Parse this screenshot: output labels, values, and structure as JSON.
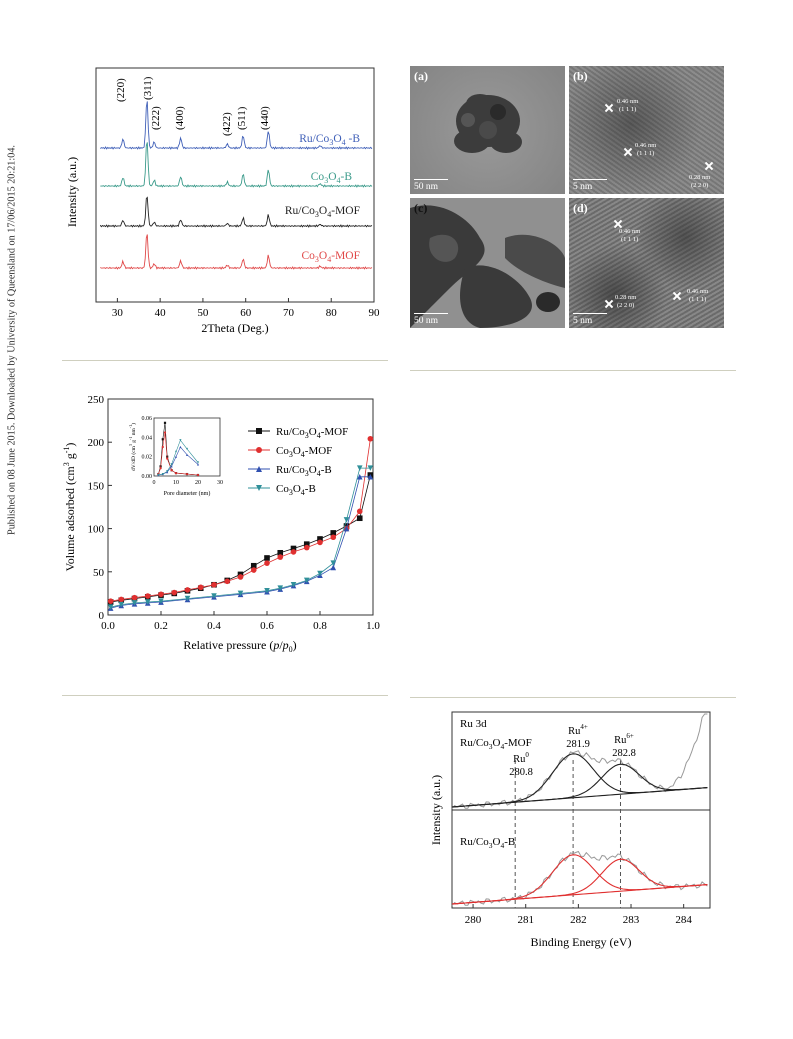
{
  "sidebar": {
    "text": "Published on 08 June 2015. Downloaded by University of Queensland on 17/06/2015 20:21:04."
  },
  "xrd": {
    "ylabel": "Intensity (a.u.)",
    "xlabel": "2Theta (Deg.)",
    "xticks": [
      "30",
      "40",
      "50",
      "60",
      "70",
      "80",
      "90"
    ],
    "peaks": [
      "(220)",
      "(311)",
      "(222)",
      "(400)",
      "(422)",
      "(511)",
      "(440)"
    ],
    "series": [
      {
        "name": "Ru/Co3O4-B",
        "color": "#4060b8"
      },
      {
        "name": "Co3O4-B",
        "color": "#3a9a8a"
      },
      {
        "name": "Ru/Co3O4-MOF",
        "color": "#222222"
      },
      {
        "name": "Co3O4-MOF",
        "color": "#e04848"
      }
    ]
  },
  "tem": {
    "panels": [
      {
        "label": "(a)",
        "scale": "50  nm",
        "ann": []
      },
      {
        "label": "(b)",
        "scale": "5  nm",
        "ann": [
          "0.46 nm",
          "(1 1 1)",
          "0.46 nm",
          "(1 1 1)",
          "0.28 nm",
          "(2 2 0)"
        ]
      },
      {
        "label": "(c)",
        "scale": "50  nm",
        "ann": []
      },
      {
        "label": "(d)",
        "scale": "5  nm",
        "ann": [
          "0.46 nm",
          "(1 1 1)",
          "0.28 nm",
          "(2 2 0)",
          "0.46 nm",
          "(1 1 1)"
        ]
      }
    ]
  },
  "bet": {
    "ylabel": "Volume adsorbed (cm³ g⁻¹)",
    "xlabel": "Relative pressure (p/p0)",
    "yticks": [
      "0",
      "50",
      "100",
      "150",
      "200",
      "250"
    ],
    "xticks": [
      "0.0",
      "0.2",
      "0.4",
      "0.6",
      "0.8",
      "1.0"
    ],
    "inset": {
      "ylabel": "dV/dD (cm³ g⁻¹ nm⁻¹)",
      "xlabel": "Pore diameter (nm)",
      "yticks": [
        "0.00",
        "0.02",
        "0.04",
        "0.06"
      ],
      "xticks": [
        "0",
        "10",
        "20",
        "30"
      ]
    },
    "legend": [
      "Ru/Co3O4-MOF",
      "Co3O4-MOF",
      "Ru/Co3O4-B",
      "Co3O4-B"
    ],
    "colors": [
      "#111111",
      "#e03030",
      "#3050b0",
      "#30909a"
    ]
  },
  "chart_data": [
    {
      "type": "line",
      "title": "",
      "xlabel": "Relative pressure (p/p0)",
      "ylabel": "Volume adsorbed (cm3 g-1)",
      "xlim": [
        0,
        1.0
      ],
      "ylim": [
        0,
        250
      ],
      "series": [
        {
          "name": "Ru/Co3O4-MOF",
          "x": [
            0.01,
            0.05,
            0.1,
            0.15,
            0.2,
            0.25,
            0.3,
            0.35,
            0.4,
            0.45,
            0.5,
            0.55,
            0.6,
            0.65,
            0.7,
            0.75,
            0.8,
            0.85,
            0.9,
            0.95,
            0.99
          ],
          "y": [
            15,
            17,
            19,
            21,
            23,
            25,
            28,
            31,
            35,
            40,
            47,
            57,
            66,
            72,
            77,
            82,
            88,
            95,
            103,
            112,
            162
          ]
        },
        {
          "name": "Co3O4-MOF",
          "x": [
            0.01,
            0.05,
            0.1,
            0.15,
            0.2,
            0.25,
            0.3,
            0.35,
            0.4,
            0.45,
            0.5,
            0.55,
            0.6,
            0.65,
            0.7,
            0.75,
            0.8,
            0.85,
            0.9,
            0.95,
            0.99
          ],
          "y": [
            16,
            18,
            20,
            22,
            24,
            26,
            29,
            32,
            35,
            39,
            44,
            52,
            60,
            67,
            73,
            78,
            84,
            90,
            100,
            120,
            204
          ]
        },
        {
          "name": "Ru/Co3O4-B",
          "x": [
            0.01,
            0.05,
            0.1,
            0.15,
            0.2,
            0.3,
            0.4,
            0.5,
            0.6,
            0.65,
            0.7,
            0.75,
            0.8,
            0.85,
            0.9,
            0.95,
            0.99
          ],
          "y": [
            8,
            11,
            13,
            14,
            15,
            18,
            21,
            24,
            27,
            30,
            34,
            39,
            46,
            55,
            100,
            160,
            160
          ]
        },
        {
          "name": "Co3O4-B",
          "x": [
            0.01,
            0.05,
            0.1,
            0.15,
            0.2,
            0.3,
            0.4,
            0.5,
            0.6,
            0.65,
            0.7,
            0.75,
            0.8,
            0.85,
            0.9,
            0.95,
            0.99
          ],
          "y": [
            9,
            12,
            14,
            15,
            16,
            19,
            22,
            25,
            28,
            31,
            35,
            40,
            48,
            60,
            110,
            170,
            170
          ]
        }
      ]
    },
    {
      "type": "line",
      "title": "",
      "xlabel": "Pore diameter (nm)",
      "ylabel": "dV/dD (cm3 g-1 nm-1)",
      "xlim": [
        0,
        30
      ],
      "ylim": [
        0,
        0.06
      ],
      "series": [
        {
          "name": "Ru/Co3O4-MOF",
          "x": [
            2,
            3,
            4,
            5,
            6,
            8,
            10,
            15,
            20
          ],
          "y": [
            0.002,
            0.01,
            0.038,
            0.055,
            0.02,
            0.006,
            0.003,
            0.002,
            0.001
          ]
        },
        {
          "name": "Co3O4-MOF",
          "x": [
            2,
            3,
            4,
            5,
            6,
            8,
            10,
            15,
            20
          ],
          "y": [
            0.002,
            0.008,
            0.03,
            0.045,
            0.018,
            0.006,
            0.003,
            0.002,
            0.001
          ]
        },
        {
          "name": "Ru/Co3O4-B",
          "x": [
            2,
            4,
            6,
            8,
            10,
            12,
            15,
            20
          ],
          "y": [
            0.001,
            0.002,
            0.004,
            0.01,
            0.02,
            0.03,
            0.022,
            0.012
          ]
        },
        {
          "name": "Co3O4-B",
          "x": [
            2,
            4,
            6,
            8,
            10,
            12,
            15,
            20
          ],
          "y": [
            0.001,
            0.002,
            0.005,
            0.012,
            0.025,
            0.037,
            0.028,
            0.014
          ]
        }
      ]
    },
    {
      "type": "line",
      "title": "",
      "xlabel": "Binding Energy (eV)",
      "ylabel": "Intensity (a.u.)",
      "xlim": [
        279.6,
        284.5
      ],
      "series": [
        {
          "name": "Ru 0",
          "x": [
            280.8
          ],
          "y": [
            0
          ]
        },
        {
          "name": "Ru 4+",
          "x": [
            281.9
          ],
          "y": [
            0
          ]
        },
        {
          "name": "Ru 6+",
          "x": [
            282.8
          ],
          "y": [
            0
          ]
        }
      ]
    }
  ],
  "xps": {
    "title": "Ru 3d",
    "sample_top": "Ru/Co3O4-MOF",
    "sample_bottom": "Ru/Co3O4-B",
    "ylabel": "Intensity (a.u.)",
    "xlabel": "Binding Energy (eV)",
    "xticks": [
      "280",
      "281",
      "282",
      "283",
      "284"
    ],
    "peaks": [
      {
        "name": "Ru",
        "sup": "0",
        "value": "280.8"
      },
      {
        "name": "Ru",
        "sup": "4+",
        "value": "281.9"
      },
      {
        "name": "Ru",
        "sup": "6+",
        "value": "282.8"
      }
    ]
  }
}
